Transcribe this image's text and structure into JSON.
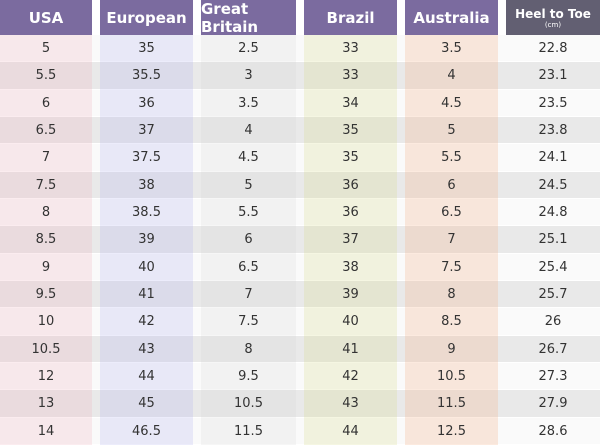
{
  "table": {
    "columns": [
      {
        "label": "USA"
      },
      {
        "label": "European"
      },
      {
        "label": "Great Britain"
      },
      {
        "label": "Brazil"
      },
      {
        "label": "Australia"
      },
      {
        "label": "Heel to Toe",
        "unit": "(cm)"
      }
    ],
    "rows": [
      [
        5,
        35,
        2.5,
        33,
        3.5,
        22.8
      ],
      [
        5.5,
        35.5,
        3,
        33,
        4,
        23.1
      ],
      [
        6,
        36,
        3.5,
        34,
        4.5,
        23.5
      ],
      [
        6.5,
        37,
        4,
        35,
        5,
        23.8
      ],
      [
        7,
        37.5,
        4.5,
        35,
        5.5,
        24.1
      ],
      [
        7.5,
        38,
        5,
        36,
        6,
        24.5
      ],
      [
        8,
        38.5,
        5.5,
        36,
        6.5,
        24.8
      ],
      [
        8.5,
        39,
        6,
        37,
        7,
        25.1
      ],
      [
        9,
        40,
        6.5,
        38,
        7.5,
        25.4
      ],
      [
        9.5,
        41,
        7,
        39,
        8,
        25.7
      ],
      [
        10,
        42,
        7.5,
        40,
        8.5,
        26
      ],
      [
        10.5,
        43,
        8,
        41,
        9,
        26.7
      ],
      [
        12,
        44,
        9.5,
        42,
        10.5,
        27.3
      ],
      [
        13,
        45,
        10.5,
        43,
        11.5,
        27.9
      ],
      [
        14,
        46.5,
        11.5,
        44,
        12.5,
        28.6
      ]
    ]
  }
}
